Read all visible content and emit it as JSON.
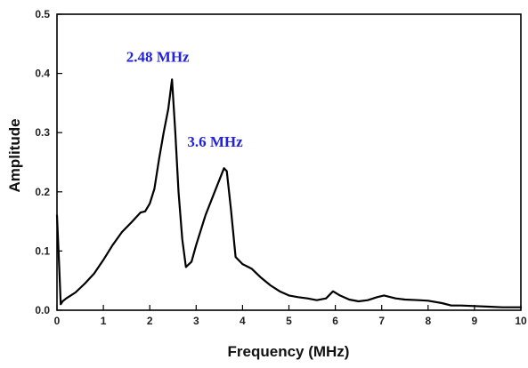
{
  "chart_data": {
    "type": "line",
    "title": "",
    "xlabel": "Frequency (MHz)",
    "ylabel": "Amplitude",
    "xlim": [
      0,
      10
    ],
    "ylim": [
      0,
      0.5
    ],
    "xticks": [
      0,
      1,
      2,
      3,
      4,
      5,
      6,
      7,
      8,
      9,
      10
    ],
    "yticks": [
      "0.0",
      "0.1",
      "0.2",
      "0.3",
      "0.4",
      "0.5"
    ],
    "grid": false,
    "line_color": "#000000",
    "annotation_color": "#2222dd",
    "annotations": [
      {
        "text": "2.48 MHz",
        "x": 2.48,
        "y": 0.39
      },
      {
        "text": "3.6 MHz",
        "x": 3.6,
        "y": 0.24
      }
    ],
    "series": [
      {
        "x": [
          0,
          0.05,
          0.08,
          0.12,
          0.2,
          0.4,
          0.6,
          0.8,
          1.0,
          1.2,
          1.4,
          1.6,
          1.8,
          1.9,
          2.0,
          2.1,
          2.2,
          2.3,
          2.4,
          2.48,
          2.55,
          2.62,
          2.7,
          2.78,
          2.9,
          3.0,
          3.2,
          3.4,
          3.6,
          3.66,
          3.75,
          3.85,
          4.0,
          4.2,
          4.4,
          4.6,
          4.8,
          5.0,
          5.2,
          5.4,
          5.6,
          5.8,
          5.95,
          6.1,
          6.3,
          6.5,
          6.7,
          6.9,
          7.05,
          7.3,
          7.5,
          7.8,
          8.0,
          8.3,
          8.5,
          8.7,
          9.0,
          9.3,
          9.6,
          10.0
        ],
        "y": [
          0.16,
          0.07,
          0.01,
          0.015,
          0.02,
          0.03,
          0.045,
          0.062,
          0.085,
          0.11,
          0.132,
          0.148,
          0.165,
          0.167,
          0.18,
          0.205,
          0.255,
          0.3,
          0.34,
          0.39,
          0.3,
          0.2,
          0.12,
          0.073,
          0.082,
          0.11,
          0.16,
          0.2,
          0.24,
          0.235,
          0.17,
          0.09,
          0.078,
          0.07,
          0.055,
          0.042,
          0.032,
          0.025,
          0.022,
          0.02,
          0.017,
          0.02,
          0.032,
          0.025,
          0.018,
          0.015,
          0.017,
          0.022,
          0.025,
          0.02,
          0.018,
          0.017,
          0.016,
          0.012,
          0.008,
          0.008,
          0.007,
          0.006,
          0.005,
          0.005
        ]
      }
    ]
  }
}
